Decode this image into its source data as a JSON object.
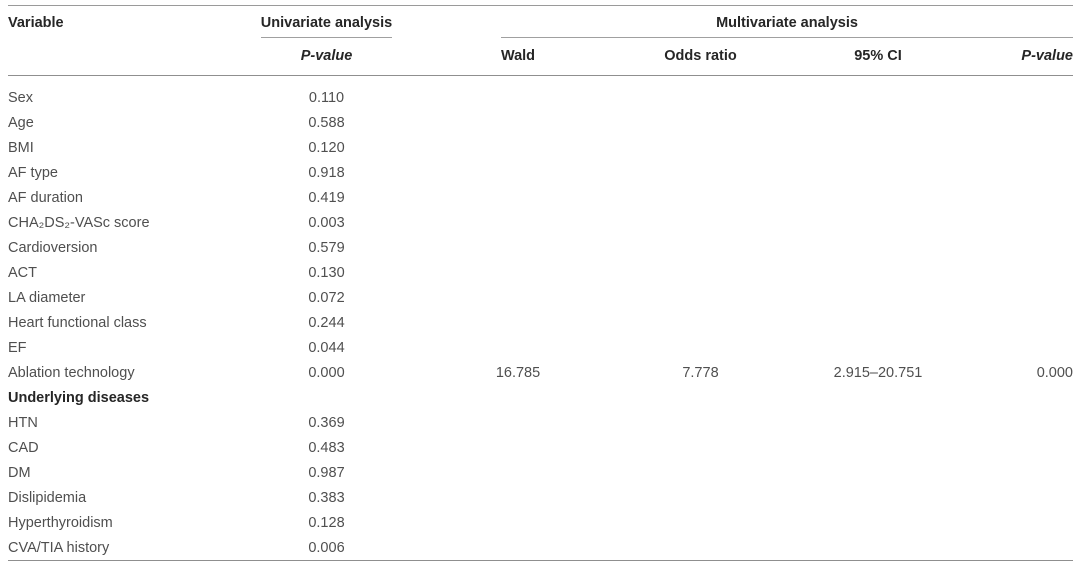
{
  "table": {
    "headers": {
      "variable": "Variable",
      "univariate_group": "Univariate analysis",
      "multivariate_group": "Multivariate analysis",
      "univariate_p": "P-value",
      "wald": "Wald",
      "odds_ratio": "Odds ratio",
      "ci": "95% CI",
      "multivariate_p": "P-value"
    },
    "rows": [
      {
        "variable": "Sex",
        "uni_p": "0.110",
        "wald": "",
        "odds_ratio": "",
        "ci": "",
        "p": ""
      },
      {
        "variable": "Age",
        "uni_p": "0.588",
        "wald": "",
        "odds_ratio": "",
        "ci": "",
        "p": ""
      },
      {
        "variable": "BMI",
        "uni_p": "0.120",
        "wald": "",
        "odds_ratio": "",
        "ci": "",
        "p": ""
      },
      {
        "variable": "AF type",
        "uni_p": "0.918",
        "wald": "",
        "odds_ratio": "",
        "ci": "",
        "p": ""
      },
      {
        "variable": "AF duration",
        "uni_p": "0.419",
        "wald": "",
        "odds_ratio": "",
        "ci": "",
        "p": ""
      },
      {
        "variable": "CHA₂DS₂-VASc score",
        "uni_p": "0.003",
        "wald": "",
        "odds_ratio": "",
        "ci": "",
        "p": ""
      },
      {
        "variable": "Cardioversion",
        "uni_p": "0.579",
        "wald": "",
        "odds_ratio": "",
        "ci": "",
        "p": ""
      },
      {
        "variable": "ACT",
        "uni_p": "0.130",
        "wald": "",
        "odds_ratio": "",
        "ci": "",
        "p": ""
      },
      {
        "variable": "LA diameter",
        "uni_p": "0.072",
        "wald": "",
        "odds_ratio": "",
        "ci": "",
        "p": ""
      },
      {
        "variable": "Heart functional class",
        "uni_p": "0.244",
        "wald": "",
        "odds_ratio": "",
        "ci": "",
        "p": ""
      },
      {
        "variable": "EF",
        "uni_p": "0.044",
        "wald": "",
        "odds_ratio": "",
        "ci": "",
        "p": ""
      },
      {
        "variable": "Ablation technology",
        "uni_p": "0.000",
        "wald": "16.785",
        "odds_ratio": "7.778",
        "ci": "2.915–20.751",
        "p": "0.000"
      },
      {
        "variable": "Underlying diseases",
        "uni_p": "",
        "wald": "",
        "odds_ratio": "",
        "ci": "",
        "p": "",
        "section": true
      },
      {
        "variable": "HTN",
        "uni_p": "0.369",
        "wald": "",
        "odds_ratio": "",
        "ci": "",
        "p": ""
      },
      {
        "variable": "CAD",
        "uni_p": "0.483",
        "wald": "",
        "odds_ratio": "",
        "ci": "",
        "p": ""
      },
      {
        "variable": "DM",
        "uni_p": "0.987",
        "wald": "",
        "odds_ratio": "",
        "ci": "",
        "p": ""
      },
      {
        "variable": "Dislipidemia",
        "uni_p": "0.383",
        "wald": "",
        "odds_ratio": "",
        "ci": "",
        "p": ""
      },
      {
        "variable": "Hyperthyroidism",
        "uni_p": "0.128",
        "wald": "",
        "odds_ratio": "",
        "ci": "",
        "p": ""
      },
      {
        "variable": "CVA/TIA history",
        "uni_p": "0.006",
        "wald": "",
        "odds_ratio": "",
        "ci": "",
        "p": ""
      }
    ]
  },
  "colors": {
    "header_text": "#262626",
    "body_text": "#4f4f4f",
    "rule": "#8f8f8f",
    "background": "#ffffff"
  }
}
